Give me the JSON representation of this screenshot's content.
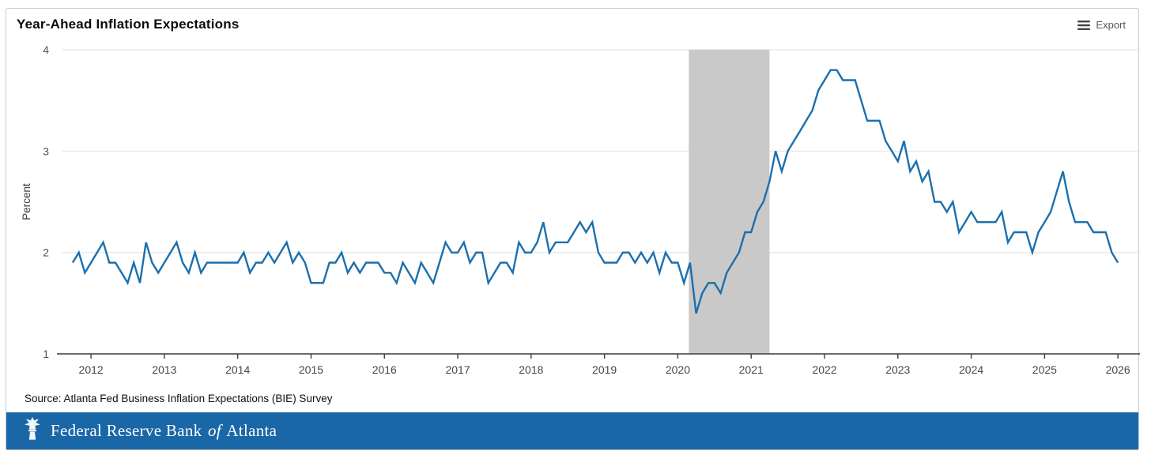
{
  "header": {
    "title": "Year-Ahead Inflation Expectations",
    "export": {
      "label": "Export",
      "icon": "menu-icon"
    }
  },
  "source": "Source: Atlanta Fed Business Inflation Expectations (BIE) Survey",
  "footer": {
    "bank_prefix": "Federal Reserve Bank",
    "bank_of": "of",
    "bank_suffix": "Atlanta",
    "icon": "fed-eagle-logo-icon",
    "bg_color": "#1A67A8",
    "text_color": "#ffffff"
  },
  "chart_data": {
    "type": "line",
    "title": "Year-Ahead Inflation Expectations",
    "xlabel": "",
    "ylabel": "Percent",
    "ylim": [
      1,
      4
    ],
    "yticks": [
      1,
      2,
      3,
      4
    ],
    "xlim": [
      2011.6,
      2026.3
    ],
    "xticks": [
      2012,
      2013,
      2014,
      2015,
      2016,
      2017,
      2018,
      2019,
      2020,
      2021,
      2022,
      2023,
      2024,
      2025,
      2026
    ],
    "grid": "horizontal",
    "legend": "none",
    "line_color": "#1C6FAD",
    "axis_color": "#3c3c3c",
    "grid_color": "#e7e7e7",
    "shaded_region": {
      "label": "recession-shading",
      "x_start": 2020.15,
      "x_end": 2021.25,
      "color": "#c9c9c9"
    },
    "series": [
      {
        "name": "Year-ahead inflation expectations (percent)",
        "frequency": "monthly",
        "start_year": 2011,
        "start_month": 10,
        "values": [
          1.9,
          2.0,
          1.8,
          1.9,
          2.0,
          2.1,
          1.9,
          1.9,
          1.8,
          1.7,
          1.9,
          1.7,
          2.1,
          1.9,
          1.8,
          1.9,
          2.0,
          2.1,
          1.9,
          1.8,
          2.0,
          1.8,
          1.9,
          1.9,
          1.9,
          1.9,
          1.9,
          1.9,
          2.0,
          1.8,
          1.9,
          1.9,
          2.0,
          1.9,
          2.0,
          2.1,
          1.9,
          2.0,
          1.9,
          1.7,
          1.7,
          1.7,
          1.9,
          1.9,
          2.0,
          1.8,
          1.9,
          1.8,
          1.9,
          1.9,
          1.9,
          1.8,
          1.8,
          1.7,
          1.9,
          1.8,
          1.7,
          1.9,
          1.8,
          1.7,
          1.9,
          2.1,
          2.0,
          2.0,
          2.1,
          1.9,
          2.0,
          2.0,
          1.7,
          1.8,
          1.9,
          1.9,
          1.8,
          2.1,
          2.0,
          2.0,
          2.1,
          2.3,
          2.0,
          2.1,
          2.1,
          2.1,
          2.2,
          2.3,
          2.2,
          2.3,
          2.0,
          1.9,
          1.9,
          1.9,
          2.0,
          2.0,
          1.9,
          2.0,
          1.9,
          2.0,
          1.8,
          2.0,
          1.9,
          1.9,
          1.7,
          1.9,
          1.4,
          1.6,
          1.7,
          1.7,
          1.6,
          1.8,
          1.9,
          2.0,
          2.2,
          2.2,
          2.4,
          2.5,
          2.7,
          3.0,
          2.8,
          3.0,
          3.1,
          3.2,
          3.3,
          3.4,
          3.6,
          3.7,
          3.8,
          3.8,
          3.7,
          3.7,
          3.7,
          3.5,
          3.3,
          3.3,
          3.3,
          3.1,
          3.0,
          2.9,
          3.1,
          2.8,
          2.9,
          2.7,
          2.8,
          2.5,
          2.5,
          2.4,
          2.5,
          2.2,
          2.3,
          2.4,
          2.3,
          2.3,
          2.3,
          2.3,
          2.4,
          2.1,
          2.2,
          2.2,
          2.2,
          2.0,
          2.2,
          2.3,
          2.4,
          2.6,
          2.8,
          2.5,
          2.3,
          2.3,
          2.3,
          2.2,
          2.2,
          2.2,
          2.0,
          1.9
        ]
      }
    ]
  }
}
